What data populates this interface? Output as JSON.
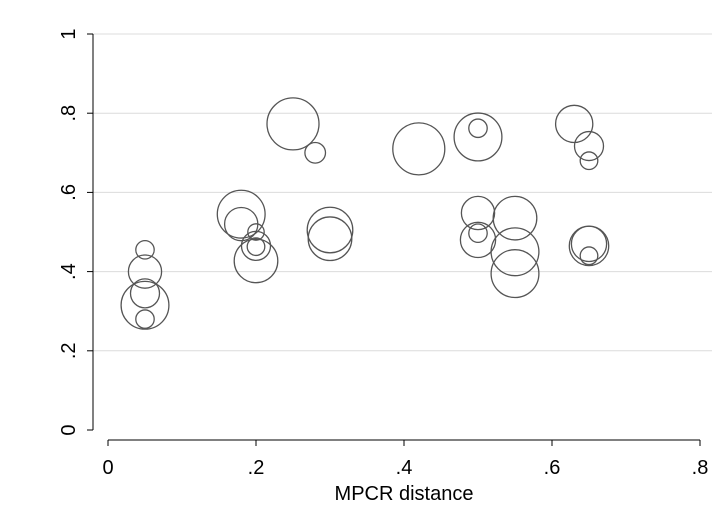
{
  "chart_data": {
    "type": "scatter",
    "marker": "hollow-circle",
    "title": "",
    "xlabel": "MPCR distance",
    "ylabel": "",
    "xlim": [
      0,
      0.8
    ],
    "ylim": [
      0,
      1
    ],
    "x_ticks": [
      {
        "value": 0,
        "label": "0"
      },
      {
        "value": 0.2,
        "label": ".2"
      },
      {
        "value": 0.4,
        "label": ".4"
      },
      {
        "value": 0.6,
        "label": ".6"
      },
      {
        "value": 0.8,
        "label": ".8"
      }
    ],
    "y_ticks": [
      {
        "value": 0,
        "label": "0"
      },
      {
        "value": 0.2,
        "label": ".2"
      },
      {
        "value": 0.4,
        "label": ".4"
      },
      {
        "value": 0.6,
        "label": ".6"
      },
      {
        "value": 0.8,
        "label": ".8"
      },
      {
        "value": 1,
        "label": "1"
      }
    ],
    "horizontal_grid": true,
    "vertical_grid": false,
    "legend": "none",
    "points": [
      {
        "x": 0.05,
        "y": 0.455,
        "weight": 0.2
      },
      {
        "x": 0.05,
        "y": 0.4,
        "weight": 0.55
      },
      {
        "x": 0.05,
        "y": 0.345,
        "weight": 0.45
      },
      {
        "x": 0.05,
        "y": 0.315,
        "weight": 0.9
      },
      {
        "x": 0.05,
        "y": 0.28,
        "weight": 0.2
      },
      {
        "x": 0.18,
        "y": 0.545,
        "weight": 0.9
      },
      {
        "x": 0.18,
        "y": 0.52,
        "weight": 0.55
      },
      {
        "x": 0.2,
        "y": 0.5,
        "weight": 0.15
      },
      {
        "x": 0.2,
        "y": 0.465,
        "weight": 0.45
      },
      {
        "x": 0.2,
        "y": 0.463,
        "weight": 0.18
      },
      {
        "x": 0.2,
        "y": 0.427,
        "weight": 0.8
      },
      {
        "x": 0.25,
        "y": 0.773,
        "weight": 1.0
      },
      {
        "x": 0.28,
        "y": 0.7,
        "weight": 0.25
      },
      {
        "x": 0.3,
        "y": 0.505,
        "weight": 0.85
      },
      {
        "x": 0.3,
        "y": 0.483,
        "weight": 0.8
      },
      {
        "x": 0.42,
        "y": 0.71,
        "weight": 1.0
      },
      {
        "x": 0.5,
        "y": 0.762,
        "weight": 0.2
      },
      {
        "x": 0.5,
        "y": 0.74,
        "weight": 0.9
      },
      {
        "x": 0.5,
        "y": 0.548,
        "weight": 0.55
      },
      {
        "x": 0.5,
        "y": 0.497,
        "weight": 0.2
      },
      {
        "x": 0.5,
        "y": 0.48,
        "weight": 0.6
      },
      {
        "x": 0.55,
        "y": 0.535,
        "weight": 0.8
      },
      {
        "x": 0.55,
        "y": 0.45,
        "weight": 0.9
      },
      {
        "x": 0.55,
        "y": 0.395,
        "weight": 0.9
      },
      {
        "x": 0.63,
        "y": 0.773,
        "weight": 0.65
      },
      {
        "x": 0.65,
        "y": 0.717,
        "weight": 0.45
      },
      {
        "x": 0.65,
        "y": 0.68,
        "weight": 0.18
      },
      {
        "x": 0.65,
        "y": 0.47,
        "weight": 0.6
      },
      {
        "x": 0.65,
        "y": 0.465,
        "weight": 0.7
      },
      {
        "x": 0.65,
        "y": 0.44,
        "weight": 0.18
      }
    ],
    "colors": {
      "marker_stroke": "#555555",
      "grid": "#dcdcdc",
      "axis": "#000000",
      "background": "#ffffff"
    }
  }
}
